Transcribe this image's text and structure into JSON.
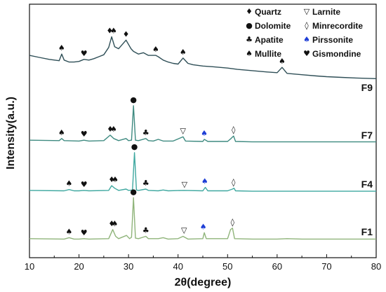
{
  "chart_data": {
    "type": "line",
    "title": "",
    "xlabel": "2θ(degree)",
    "ylabel": "Intensity(a.u.)",
    "xlim": [
      10,
      80
    ],
    "xticks": [
      10,
      20,
      30,
      40,
      50,
      60,
      70,
      80
    ],
    "grid": false,
    "legend_placement": "top-right",
    "legend": [
      {
        "symbol": "♦",
        "name": "Quartz",
        "color": "#111111"
      },
      {
        "symbol": "▽",
        "name": "Larnite",
        "color": "#111111"
      },
      {
        "symbol": "●",
        "name": "Dolomite",
        "color": "#111111"
      },
      {
        "symbol": "◊",
        "name": "Minrecordite",
        "color": "#111111"
      },
      {
        "symbol": "♣",
        "name": "Apatite",
        "color": "#111111"
      },
      {
        "symbol": "♠",
        "name": "Pirssonite",
        "color": "#1f3fd6"
      },
      {
        "symbol": "♠",
        "name": "Mullite",
        "color": "#111111"
      },
      {
        "symbol": "♥",
        "name": "Gismondine",
        "color": "#111111"
      }
    ],
    "series": [
      {
        "name": "F9",
        "color": "#2f4f57",
        "points": [
          [
            10,
            0.62
          ],
          [
            12,
            0.59
          ],
          [
            14,
            0.56
          ],
          [
            16,
            0.54
          ],
          [
            16.5,
            0.64
          ],
          [
            17,
            0.55
          ],
          [
            18,
            0.52
          ],
          [
            19,
            0.52
          ],
          [
            20,
            0.53
          ],
          [
            21,
            0.56
          ],
          [
            22,
            0.55
          ],
          [
            23,
            0.57
          ],
          [
            24,
            0.6
          ],
          [
            25,
            0.63
          ],
          [
            26,
            0.74
          ],
          [
            26.6,
            0.9
          ],
          [
            27.2,
            0.75
          ],
          [
            28,
            0.72
          ],
          [
            29.5,
            0.85
          ],
          [
            30.5,
            0.72
          ],
          [
            31,
            0.68
          ],
          [
            32,
            0.64
          ],
          [
            33,
            0.66
          ],
          [
            34,
            0.62
          ],
          [
            35.5,
            0.62
          ],
          [
            36,
            0.6
          ],
          [
            37,
            0.55
          ],
          [
            38,
            0.52
          ],
          [
            39,
            0.5
          ],
          [
            40,
            0.49
          ],
          [
            41,
            0.58
          ],
          [
            42,
            0.5
          ],
          [
            43,
            0.48
          ],
          [
            45,
            0.46
          ],
          [
            47,
            0.45
          ],
          [
            50,
            0.43
          ],
          [
            52,
            0.41
          ],
          [
            55,
            0.39
          ],
          [
            58,
            0.37
          ],
          [
            60,
            0.36
          ],
          [
            61,
            0.44
          ],
          [
            62,
            0.35
          ],
          [
            65,
            0.33
          ],
          [
            68,
            0.31
          ],
          [
            70,
            0.3
          ],
          [
            73,
            0.29
          ],
          [
            76,
            0.28
          ],
          [
            80,
            0.27
          ]
        ],
        "markers": [
          {
            "x": 16.5,
            "symbol": "♠"
          },
          {
            "x": 21,
            "symbol": "♥"
          },
          {
            "x": 26.2,
            "symbol": "♦"
          },
          {
            "x": 27,
            "symbol": "♠"
          },
          {
            "x": 29.5,
            "symbol": "♦"
          },
          {
            "x": 35.5,
            "symbol": "♠"
          },
          {
            "x": 41,
            "symbol": "♠"
          },
          {
            "x": 61,
            "symbol": "♠"
          }
        ]
      },
      {
        "name": "F7",
        "color": "#3e8a80",
        "points": [
          [
            10,
            0.08
          ],
          [
            16,
            0.07
          ],
          [
            16.5,
            0.12
          ],
          [
            17,
            0.07
          ],
          [
            20,
            0.06
          ],
          [
            21,
            0.08
          ],
          [
            22,
            0.06
          ],
          [
            25,
            0.07
          ],
          [
            26.3,
            0.2
          ],
          [
            27,
            0.12
          ],
          [
            28,
            0.07
          ],
          [
            29.5,
            0.12
          ],
          [
            30,
            0.07
          ],
          [
            30.6,
            0.08
          ],
          [
            31,
            0.9
          ],
          [
            31.4,
            0.08
          ],
          [
            32,
            0.07
          ],
          [
            33.5,
            0.12
          ],
          [
            34,
            0.07
          ],
          [
            35,
            0.06
          ],
          [
            36,
            0.1
          ],
          [
            37,
            0.06
          ],
          [
            39,
            0.06
          ],
          [
            41,
            0.16
          ],
          [
            41.5,
            0.06
          ],
          [
            45,
            0.05
          ],
          [
            45.3,
            0.1
          ],
          [
            46,
            0.05
          ],
          [
            50,
            0.05
          ],
          [
            50.7,
            0.12
          ],
          [
            51.2,
            0.18
          ],
          [
            51.6,
            0.05
          ],
          [
            55,
            0.04
          ],
          [
            60,
            0.04
          ],
          [
            65,
            0.04
          ],
          [
            70,
            0.04
          ],
          [
            75,
            0.04
          ],
          [
            80,
            0.04
          ]
        ],
        "markers": [
          {
            "x": 16.5,
            "symbol": "♠"
          },
          {
            "x": 21,
            "symbol": "♥"
          },
          {
            "x": 26.3,
            "symbol": "♦"
          },
          {
            "x": 27,
            "symbol": "♠"
          },
          {
            "x": 31,
            "symbol": "●"
          },
          {
            "x": 33.5,
            "symbol": "♣"
          },
          {
            "x": 41,
            "symbol": "▽"
          },
          {
            "x": 45.3,
            "symbol": "♠",
            "color": "#1f3fd6"
          },
          {
            "x": 51.2,
            "symbol": "◊"
          }
        ]
      },
      {
        "name": "F4",
        "color": "#3fa8a0",
        "points": [
          [
            10,
            0.05
          ],
          [
            17,
            0.04
          ],
          [
            18,
            0.07
          ],
          [
            19,
            0.04
          ],
          [
            20,
            0.04
          ],
          [
            21,
            0.05
          ],
          [
            22,
            0.04
          ],
          [
            26,
            0.05
          ],
          [
            26.6,
            0.16
          ],
          [
            27.2,
            0.1
          ],
          [
            28,
            0.05
          ],
          [
            29.5,
            0.08
          ],
          [
            30,
            0.05
          ],
          [
            30.8,
            0.06
          ],
          [
            31.2,
            0.92
          ],
          [
            31.6,
            0.06
          ],
          [
            32,
            0.05
          ],
          [
            33.5,
            0.08
          ],
          [
            34,
            0.05
          ],
          [
            36,
            0.04
          ],
          [
            37,
            0.06
          ],
          [
            38,
            0.04
          ],
          [
            41.2,
            0.05
          ],
          [
            45,
            0.04
          ],
          [
            45.5,
            0.12
          ],
          [
            46,
            0.04
          ],
          [
            50,
            0.04
          ],
          [
            51,
            0.08
          ],
          [
            51.3,
            0.1
          ],
          [
            51.6,
            0.04
          ],
          [
            55,
            0.03
          ],
          [
            60,
            0.03
          ],
          [
            65,
            0.03
          ],
          [
            70,
            0.03
          ],
          [
            75,
            0.03
          ],
          [
            80,
            0.03
          ]
        ],
        "markers": [
          {
            "x": 18,
            "symbol": "♠"
          },
          {
            "x": 21,
            "symbol": "♥"
          },
          {
            "x": 26.6,
            "symbol": "♦"
          },
          {
            "x": 27.3,
            "symbol": "♠"
          },
          {
            "x": 31.2,
            "symbol": "●"
          },
          {
            "x": 33.5,
            "symbol": "♣"
          },
          {
            "x": 41.3,
            "symbol": "▽"
          },
          {
            "x": 45.4,
            "symbol": "♠",
            "color": "#1f3fd6"
          },
          {
            "x": 51.2,
            "symbol": "◊"
          }
        ]
      },
      {
        "name": "F1",
        "color": "#8fb47a",
        "points": [
          [
            10,
            0.05
          ],
          [
            17,
            0.04
          ],
          [
            18,
            0.07
          ],
          [
            19,
            0.04
          ],
          [
            20,
            0.04
          ],
          [
            21,
            0.05
          ],
          [
            22,
            0.04
          ],
          [
            26,
            0.05
          ],
          [
            26.8,
            0.25
          ],
          [
            27.4,
            0.1
          ],
          [
            28,
            0.05
          ],
          [
            29.6,
            0.12
          ],
          [
            30.2,
            0.05
          ],
          [
            30.6,
            0.08
          ],
          [
            31,
            0.95
          ],
          [
            31.4,
            0.06
          ],
          [
            32,
            0.05
          ],
          [
            33.5,
            0.1
          ],
          [
            34,
            0.05
          ],
          [
            36,
            0.05
          ],
          [
            37,
            0.07
          ],
          [
            38,
            0.04
          ],
          [
            40,
            0.05
          ],
          [
            41,
            0.1
          ],
          [
            42,
            0.04
          ],
          [
            45,
            0.05
          ],
          [
            45.3,
            0.18
          ],
          [
            45.7,
            0.05
          ],
          [
            50,
            0.05
          ],
          [
            50.6,
            0.25
          ],
          [
            51,
            0.28
          ],
          [
            51.4,
            0.05
          ],
          [
            55,
            0.04
          ],
          [
            60,
            0.04
          ],
          [
            62,
            0.05
          ],
          [
            65,
            0.04
          ],
          [
            70,
            0.04
          ],
          [
            75,
            0.04
          ],
          [
            80,
            0.04
          ]
        ],
        "markers": [
          {
            "x": 18,
            "symbol": "♠"
          },
          {
            "x": 21,
            "symbol": "♥"
          },
          {
            "x": 26.6,
            "symbol": "♦"
          },
          {
            "x": 27.2,
            "symbol": "♠"
          },
          {
            "x": 31,
            "symbol": "●"
          },
          {
            "x": 33.5,
            "symbol": "♣"
          },
          {
            "x": 41.2,
            "symbol": "▽"
          },
          {
            "x": 45.1,
            "symbol": "♠",
            "color": "#1f3fd6"
          },
          {
            "x": 51,
            "symbol": "◊"
          }
        ]
      }
    ]
  }
}
